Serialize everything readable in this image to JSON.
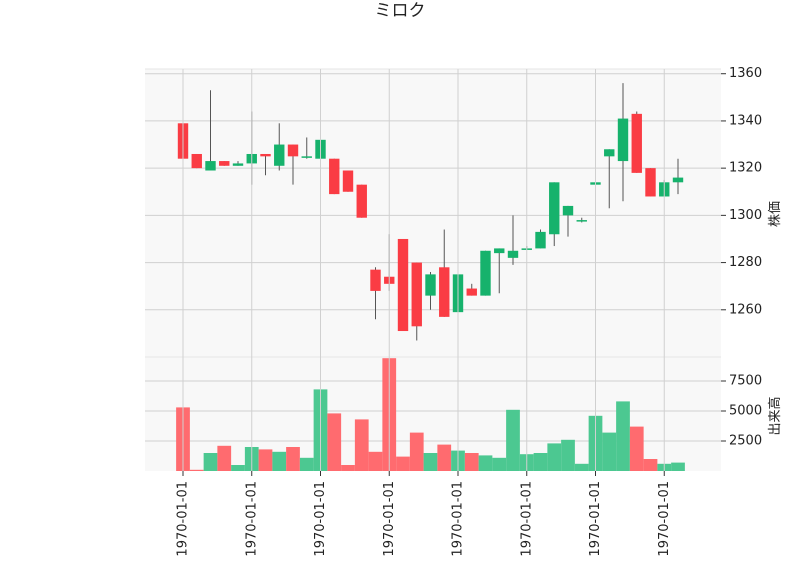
{
  "chart_data": {
    "type": "candlestick",
    "title": "ミロク",
    "price_axis": {
      "label": "株価",
      "ylim": [
        1240,
        1362
      ],
      "ticks": [
        1260,
        1280,
        1300,
        1320,
        1340,
        1360
      ],
      "side": "right"
    },
    "volume_axis": {
      "label": "出来高",
      "ylim": [
        0,
        9500
      ],
      "ticks": [
        2500,
        5000,
        7500
      ],
      "side": "right"
    },
    "x_tick_labels": [
      "1970-01-01",
      "1970-01-01",
      "1970-01-01",
      "1970-01-01",
      "1970-01-01",
      "1970-01-01",
      "1970-01-01",
      "1970-01-01"
    ],
    "x_tick_indices": [
      0,
      5,
      10,
      15,
      20,
      25,
      30,
      35
    ],
    "grid": true,
    "colors": {
      "up": "#16b26c",
      "down": "#fa3c44",
      "up_volume": "#4cc891",
      "down_volume": "#ff6b6f",
      "wick": "#555555",
      "plot_bg": "#f8f8f8",
      "grid": "#d0d0d0"
    },
    "candles": [
      {
        "open": 1339,
        "high": 1339,
        "low": 1309,
        "close": 1324
      },
      {
        "open": 1326,
        "high": 1326,
        "low": 1320,
        "close": 1320
      },
      {
        "open": 1319,
        "high": 1353,
        "low": 1319,
        "close": 1323
      },
      {
        "open": 1323,
        "high": 1323,
        "low": 1321,
        "close": 1321
      },
      {
        "open": 1321,
        "high": 1323,
        "low": 1321,
        "close": 1322
      },
      {
        "open": 1322,
        "high": 1344,
        "low": 1313,
        "close": 1326
      },
      {
        "open": 1326,
        "high": 1326,
        "low": 1317,
        "close": 1325
      },
      {
        "open": 1321,
        "high": 1339,
        "low": 1319,
        "close": 1330
      },
      {
        "open": 1330,
        "high": 1330,
        "low": 1313,
        "close": 1325
      },
      {
        "open": 1325,
        "high": 1333,
        "low": 1324,
        "close": 1325
      },
      {
        "open": 1324,
        "high": 1340,
        "low": 1306,
        "close": 1332
      },
      {
        "open": 1324,
        "high": 1324,
        "low": 1309,
        "close": 1309
      },
      {
        "open": 1319,
        "high": 1319,
        "low": 1310,
        "close": 1310
      },
      {
        "open": 1313,
        "high": 1313,
        "low": 1299,
        "close": 1299
      },
      {
        "open": 1277,
        "high": 1278,
        "low": 1256,
        "close": 1268
      },
      {
        "open": 1274,
        "high": 1292,
        "low": 1268,
        "close": 1271
      },
      {
        "open": 1290,
        "high": 1290,
        "low": 1251,
        "close": 1251
      },
      {
        "open": 1280,
        "high": 1280,
        "low": 1247,
        "close": 1253
      },
      {
        "open": 1266,
        "high": 1276,
        "low": 1260,
        "close": 1275
      },
      {
        "open": 1278,
        "high": 1294,
        "low": 1257,
        "close": 1257
      },
      {
        "open": 1259,
        "high": 1275,
        "low": 1259,
        "close": 1275
      },
      {
        "open": 1269,
        "high": 1271,
        "low": 1266,
        "close": 1266
      },
      {
        "open": 1266,
        "high": 1285,
        "low": 1266,
        "close": 1285
      },
      {
        "open": 1284,
        "high": 1286,
        "low": 1267,
        "close": 1286
      },
      {
        "open": 1282,
        "high": 1300,
        "low": 1279,
        "close": 1285
      },
      {
        "open": 1286,
        "high": 1287,
        "low": 1286,
        "close": 1286
      },
      {
        "open": 1286,
        "high": 1294,
        "low": 1286,
        "close": 1293
      },
      {
        "open": 1292,
        "high": 1314,
        "low": 1287,
        "close": 1314
      },
      {
        "open": 1300,
        "high": 1304,
        "low": 1291,
        "close": 1304
      },
      {
        "open": 1298,
        "high": 1299,
        "low": 1297,
        "close": 1298
      },
      {
        "open": 1313,
        "high": 1325,
        "low": 1313,
        "close": 1314
      },
      {
        "open": 1325,
        "high": 1328,
        "low": 1303,
        "close": 1328
      },
      {
        "open": 1323,
        "high": 1356,
        "low": 1306,
        "close": 1341
      },
      {
        "open": 1343,
        "high": 1344,
        "low": 1318,
        "close": 1318
      },
      {
        "open": 1320,
        "high": 1320,
        "low": 1308,
        "close": 1308
      },
      {
        "open": 1308,
        "high": 1315,
        "low": 1308,
        "close": 1314
      },
      {
        "open": 1314,
        "high": 1324,
        "low": 1309,
        "close": 1316
      }
    ],
    "volume": [
      5300,
      100,
      1500,
      2100,
      500,
      2000,
      1800,
      1600,
      2000,
      1100,
      6800,
      4800,
      500,
      4300,
      1600,
      9400,
      1200,
      3200,
      1500,
      2200,
      1700,
      1500,
      1300,
      1100,
      5100,
      1400,
      1500,
      2300,
      2600,
      600,
      4600,
      3200,
      5800,
      3700,
      1000,
      600,
      700
    ]
  }
}
